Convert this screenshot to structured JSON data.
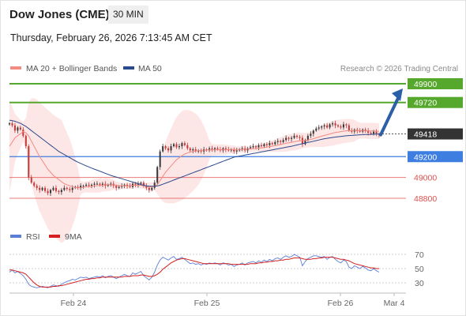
{
  "header": {
    "title": "Dow Jones (CME)",
    "interval": "30 MIN",
    "timestamp": "Thursday, February 26, 2026 7:13:45 AM CET"
  },
  "legend": {
    "items": [
      {
        "label": "MA 20 + Bollinger Bands",
        "color": "#f28b82"
      },
      {
        "label": "MA 50",
        "color": "#2b4a8c"
      }
    ],
    "credit": "Research © 2026 Trading Central"
  },
  "colors": {
    "resistance": "#55a82c",
    "current": "#333333",
    "pivot": "#3d7ee0",
    "support": "#e0504e",
    "arrow": "#2b5fa8",
    "candle_up": "#3a3a3a",
    "candle_down": "#c23a3a"
  },
  "chart_data": [
    {
      "type": "candlestick",
      "ylim": [
        48700,
        50000
      ],
      "x_ticks": [
        "Feb 24",
        "Feb 25",
        "Feb 26",
        "Mar 4"
      ],
      "levels": [
        {
          "value": 49900,
          "label": "49900",
          "kind": "resistance"
        },
        {
          "value": 49720,
          "label": "49720",
          "kind": "resistance"
        },
        {
          "value": 49418,
          "label": "49418",
          "kind": "current"
        },
        {
          "value": 49200,
          "label": "49200",
          "kind": "pivot"
        },
        {
          "value": 49000,
          "label": "49000",
          "kind": "support"
        },
        {
          "value": 48800,
          "label": "48800",
          "kind": "support"
        }
      ],
      "forecast": {
        "from": 49410,
        "to": 49900
      },
      "series": [
        {
          "name": "Price",
          "values": [
            49520,
            49500,
            49450,
            49480,
            49460,
            49400,
            49300,
            49000,
            48950,
            48920,
            48900,
            48880,
            48900,
            48870,
            48850,
            48880,
            48900,
            48870,
            48860,
            48880,
            48900,
            48890,
            48880,
            48900,
            48910,
            48900,
            48920,
            48920,
            48930,
            48920,
            48930,
            48940,
            48940,
            48930,
            48940,
            48920,
            48930,
            48940,
            48920,
            48900,
            48910,
            48920,
            48930,
            48920,
            48910,
            48940,
            48930,
            48940,
            48950,
            48920,
            48900,
            48880,
            48900,
            48950,
            49100,
            49250,
            49300,
            49280,
            49260,
            49300,
            49320,
            49290,
            49300,
            49330,
            49310,
            49280,
            49260,
            49270,
            49250,
            49260,
            49250,
            49270,
            49260,
            49280,
            49270,
            49280,
            49270,
            49260,
            49280,
            49270,
            49260,
            49270,
            49250,
            49260,
            49270,
            49280,
            49260,
            49280,
            49290,
            49300,
            49290,
            49310,
            49300,
            49320,
            49310,
            49330,
            49320,
            49340,
            49350,
            49340,
            49360,
            49380,
            49370,
            49380,
            49400,
            49390,
            49380,
            49320,
            49360,
            49400,
            49420,
            49450,
            49470,
            49480,
            49490,
            49500,
            49480,
            49510,
            49520,
            49500,
            49490,
            49480,
            49510,
            49500,
            49450,
            49440,
            49460,
            49450,
            49440,
            49460,
            49450,
            49430,
            49420,
            49440,
            49420,
            49410
          ]
        },
        {
          "name": "MA 20",
          "values": [
            49300,
            49340,
            49380,
            49400,
            49420,
            49440,
            49430,
            49400,
            49350,
            49300,
            49250,
            49200,
            49160,
            49120,
            49080,
            49050,
            49020,
            49000,
            48980,
            48960,
            48940,
            48930,
            48920,
            48910,
            48905,
            48900,
            48900,
            48905,
            48910,
            48910,
            48915,
            48920,
            48920,
            48925,
            48925,
            48930,
            48930,
            48930,
            48930,
            48925,
            48920,
            48920,
            48920,
            48920,
            48920,
            48925,
            48925,
            48925,
            48925,
            48920,
            48915,
            48910,
            48910,
            48915,
            48930,
            48970,
            49010,
            49050,
            49080,
            49110,
            49140,
            49170,
            49190,
            49210,
            49225,
            49235,
            49245,
            49250,
            49255,
            49258,
            49260,
            49262,
            49263,
            49264,
            49265,
            49265,
            49266,
            49266,
            49267,
            49267,
            49268,
            49268,
            49268,
            49268,
            49269,
            49270,
            49270,
            49272,
            49274,
            49276,
            49278,
            49281,
            49284,
            49288,
            49292,
            49296,
            49300,
            49305,
            49310,
            49316,
            49322,
            49328,
            49333,
            49338,
            49343,
            49348,
            49352,
            49354,
            49356,
            49360,
            49365,
            49372,
            49380,
            49388,
            49396,
            49404,
            49410,
            49418,
            49425,
            49432,
            49436,
            49440,
            49445,
            49448,
            49450,
            49450,
            49450,
            49450,
            49450,
            49449,
            49448,
            49447,
            49446,
            49446,
            49445,
            49444
          ]
        },
        {
          "name": "MA 50",
          "values": [
            49550,
            49545,
            49540,
            49530,
            49520,
            49505,
            49490,
            49470,
            49450,
            49430,
            49410,
            49390,
            49370,
            49350,
            49330,
            49310,
            49290,
            49270,
            49250,
            49235,
            49220,
            49205,
            49190,
            49175,
            49160,
            49147,
            49135,
            49123,
            49112,
            49101,
            49090,
            49080,
            49070,
            49060,
            49050,
            49040,
            49030,
            49020,
            49012,
            49004,
            48996,
            48988,
            48980,
            48972,
            48964,
            48956,
            48948,
            48940,
            48932,
            48925,
            48920,
            48917,
            48915,
            48915,
            48918,
            48925,
            48935,
            48945,
            48955,
            48965,
            48975,
            48985,
            48995,
            49005,
            49015,
            49025,
            49035,
            49045,
            49055,
            49065,
            49075,
            49085,
            49095,
            49105,
            49115,
            49125,
            49135,
            49145,
            49155,
            49165,
            49175,
            49185,
            49195,
            49200,
            49205,
            49210,
            49215,
            49220,
            49225,
            49230,
            49235,
            49240,
            49245,
            49250,
            49255,
            49260,
            49265,
            49270,
            49275,
            49280,
            49285,
            49290,
            49295,
            49300,
            49306,
            49312,
            49318,
            49324,
            49330,
            49336,
            49342,
            49348,
            49354,
            49360,
            49366,
            49372,
            49376,
            49380,
            49384,
            49388,
            49391,
            49394,
            49397,
            49400,
            49402,
            49404,
            49406,
            49408,
            49410,
            49411,
            49412,
            49413,
            49414,
            49415,
            49416,
            49417
          ]
        }
      ]
    },
    {
      "type": "line",
      "ylim": [
        20,
        80
      ],
      "y_ticks": [
        70,
        50,
        30
      ],
      "series": [
        {
          "name": "RSI",
          "values": [
            45,
            48,
            44,
            46,
            43,
            40,
            35,
            28,
            25,
            24,
            23,
            24,
            25,
            24,
            23,
            25,
            27,
            26,
            25,
            28,
            30,
            32,
            33,
            35,
            34,
            36,
            38,
            37,
            38,
            36,
            37,
            38,
            39,
            38,
            40,
            37,
            39,
            40,
            38,
            36,
            38,
            40,
            42,
            40,
            39,
            44,
            42,
            44,
            46,
            40,
            37,
            34,
            38,
            45,
            55,
            62,
            66,
            64,
            62,
            65,
            67,
            63,
            64,
            66,
            63,
            60,
            57,
            58,
            56,
            57,
            55,
            57,
            56,
            58,
            57,
            58,
            57,
            55,
            58,
            57,
            55,
            56,
            53,
            55,
            56,
            58,
            55,
            58,
            59,
            60,
            58,
            61,
            59,
            62,
            60,
            63,
            61,
            64,
            65,
            63,
            66,
            68,
            66,
            67,
            70,
            68,
            66,
            54,
            60,
            64,
            66,
            68,
            68,
            67,
            66,
            67,
            63,
            66,
            67,
            63,
            60,
            58,
            62,
            60,
            52,
            50,
            54,
            52,
            50,
            53,
            51,
            48,
            47,
            50,
            47,
            45
          ]
        },
        {
          "name": "9MA",
          "values": [
            48,
            48,
            47,
            46,
            45,
            44,
            42,
            38,
            34,
            30,
            27,
            25,
            24,
            24,
            24,
            24,
            25,
            25,
            26,
            26,
            27,
            28,
            29,
            30,
            31,
            32,
            33,
            34,
            35,
            35,
            36,
            36,
            37,
            37,
            38,
            38,
            38,
            38,
            38,
            38,
            38,
            38,
            39,
            39,
            39,
            40,
            40,
            40,
            41,
            41,
            40,
            39,
            39,
            40,
            42,
            45,
            49,
            52,
            55,
            58,
            60,
            62,
            63,
            64,
            64,
            63,
            62,
            61,
            60,
            59,
            58,
            57,
            57,
            57,
            57,
            57,
            57,
            57,
            57,
            57,
            57,
            56,
            56,
            56,
            56,
            56,
            56,
            56,
            57,
            57,
            57,
            58,
            58,
            59,
            59,
            60,
            60,
            61,
            61,
            62,
            62,
            63,
            63,
            64,
            65,
            65,
            65,
            64,
            63,
            63,
            63,
            64,
            64,
            65,
            65,
            66,
            66,
            66,
            66,
            65,
            64,
            63,
            63,
            62,
            61,
            59,
            57,
            56,
            55,
            54,
            53,
            52,
            51,
            51,
            50,
            50
          ]
        }
      ]
    }
  ]
}
